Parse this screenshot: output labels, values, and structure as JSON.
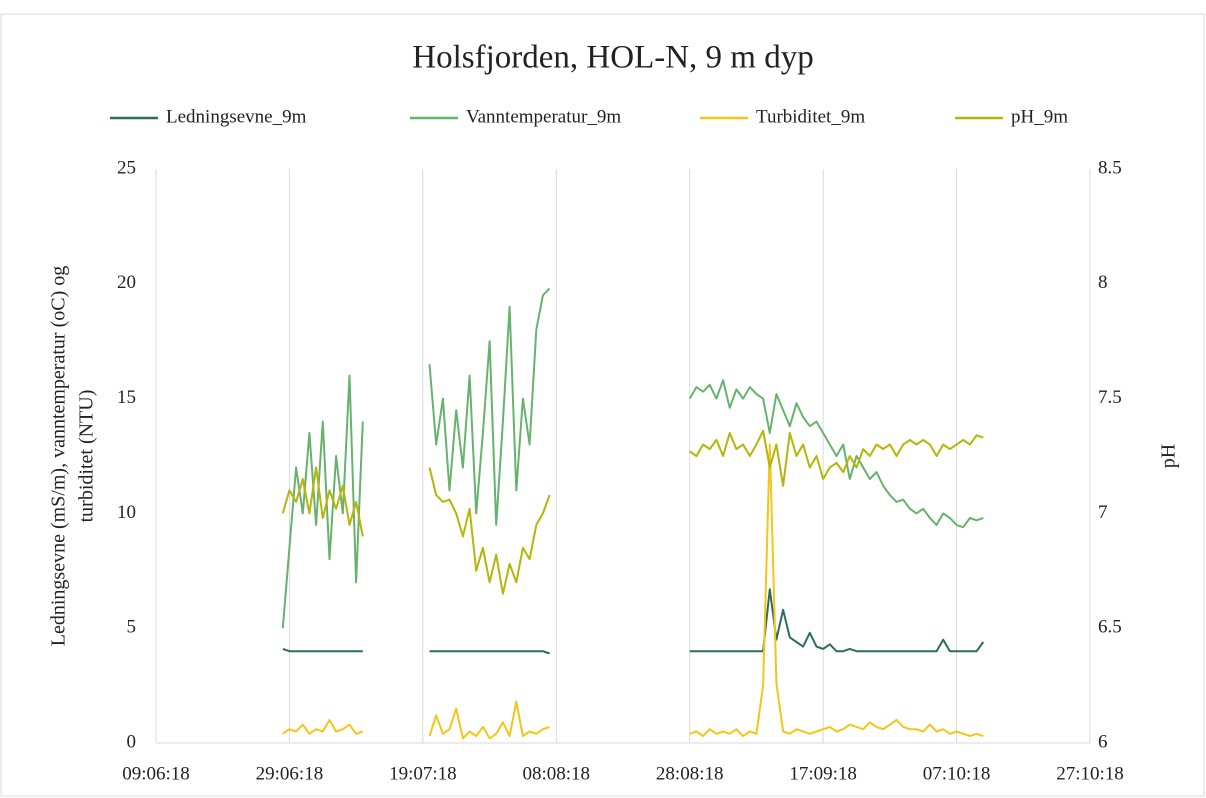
{
  "chart_data": {
    "type": "line",
    "title": "Holsfjorden, HOL-N, 9 m dyp",
    "ylabel": [
      "Ledningsevne (mS/m), vanntemperatur (oC) og",
      "turbiditet (NTU)"
    ],
    "y2label": "pH",
    "x": [
      "2018-06-28",
      "2018-06-29",
      "2018-06-30",
      "2018-07-01",
      "2018-07-02",
      "2018-07-03",
      "2018-07-04",
      "2018-07-05",
      "2018-07-06",
      "2018-07-07",
      "2018-07-08",
      "2018-07-09",
      "2018-07-10",
      "2018-07-15",
      "2018-07-20",
      "2018-07-21",
      "2018-07-22",
      "2018-07-23",
      "2018-07-24",
      "2018-07-25",
      "2018-07-26",
      "2018-07-27",
      "2018-07-28",
      "2018-07-29",
      "2018-07-30",
      "2018-07-31",
      "2018-08-01",
      "2018-08-02",
      "2018-08-03",
      "2018-08-04",
      "2018-08-05",
      "2018-08-06",
      "2018-08-07",
      "2018-08-17",
      "2018-08-28",
      "2018-08-29",
      "2018-08-30",
      "2018-08-31",
      "2018-09-01",
      "2018-09-02",
      "2018-09-03",
      "2018-09-04",
      "2018-09-05",
      "2018-09-06",
      "2018-09-07",
      "2018-09-08",
      "2018-09-09",
      "2018-09-10",
      "2018-09-11",
      "2018-09-12",
      "2018-09-13",
      "2018-09-14",
      "2018-09-15",
      "2018-09-16",
      "2018-09-17",
      "2018-09-18",
      "2018-09-19",
      "2018-09-20",
      "2018-09-21",
      "2018-09-22",
      "2018-09-23",
      "2018-09-24",
      "2018-09-25",
      "2018-09-26",
      "2018-09-27",
      "2018-09-28",
      "2018-09-29",
      "2018-09-30",
      "2018-10-01",
      "2018-10-02",
      "2018-10-03",
      "2018-10-04",
      "2018-10-05",
      "2018-10-06",
      "2018-10-07",
      "2018-10-08",
      "2018-10-09",
      "2018-10-10",
      "2018-10-11"
    ],
    "series": [
      {
        "name": "Ledningsevne_9m",
        "color": "#2e6b60",
        "values": [
          4.1,
          4.0,
          4.0,
          4.0,
          4.0,
          4.0,
          4.0,
          4.0,
          4.0,
          4.0,
          4.0,
          4.0,
          4.0,
          null,
          4.0,
          4.0,
          4.0,
          4.0,
          4.0,
          4.0,
          4.0,
          4.0,
          4.0,
          4.0,
          4.0,
          4.0,
          4.0,
          4.0,
          4.0,
          4.0,
          4.0,
          4.0,
          3.9,
          null,
          4.0,
          4.0,
          4.0,
          4.0,
          4.0,
          4.0,
          4.0,
          4.0,
          4.0,
          4.0,
          4.0,
          4.0,
          6.7,
          4.5,
          5.8,
          4.6,
          4.4,
          4.2,
          4.8,
          4.2,
          4.1,
          4.3,
          4.0,
          4.0,
          4.1,
          4.0,
          4.0,
          4.0,
          4.0,
          4.0,
          4.0,
          4.0,
          4.0,
          4.0,
          4.0,
          4.0,
          4.0,
          4.0,
          4.5,
          4.0,
          4.0,
          4.0,
          4.0,
          4.0,
          4.4
        ]
      },
      {
        "name": "Vanntemperatur_9m",
        "color": "#66b36e",
        "values": [
          5.0,
          8.5,
          12.0,
          10.0,
          13.5,
          9.5,
          14.0,
          8.0,
          12.5,
          10.0,
          16.0,
          7.0,
          14.0,
          null,
          16.5,
          13.0,
          15.0,
          11.0,
          14.5,
          12.0,
          16.0,
          10.0,
          13.5,
          17.5,
          9.5,
          14.0,
          19.0,
          11.0,
          15.0,
          13.0,
          18.0,
          19.5,
          19.8,
          null,
          15.0,
          15.5,
          15.3,
          15.6,
          15.0,
          15.8,
          14.6,
          15.4,
          15.0,
          15.5,
          15.2,
          15.0,
          13.5,
          15.2,
          14.5,
          13.8,
          14.8,
          14.2,
          13.8,
          14.0,
          13.5,
          13.0,
          12.5,
          13.0,
          11.5,
          12.5,
          12.0,
          11.5,
          11.8,
          11.2,
          10.8,
          10.5,
          10.6,
          10.2,
          10.0,
          10.2,
          9.8,
          9.5,
          10.0,
          9.8,
          9.5,
          9.4,
          9.8,
          9.7,
          9.8
        ]
      },
      {
        "name": "Turbiditet_9m",
        "color": "#f5c518",
        "values": [
          0.4,
          0.6,
          0.5,
          0.8,
          0.4,
          0.6,
          0.5,
          1.0,
          0.5,
          0.6,
          0.8,
          0.4,
          0.5,
          null,
          0.3,
          1.2,
          0.4,
          0.6,
          1.5,
          0.2,
          0.5,
          0.3,
          0.7,
          0.2,
          0.4,
          0.9,
          0.3,
          1.8,
          0.3,
          0.5,
          0.4,
          0.6,
          0.7,
          null,
          0.4,
          0.5,
          0.3,
          0.6,
          0.4,
          0.5,
          0.4,
          0.6,
          0.3,
          0.5,
          0.4,
          2.5,
          13.0,
          2.6,
          0.5,
          0.4,
          0.6,
          0.5,
          0.4,
          0.5,
          0.6,
          0.7,
          0.5,
          0.6,
          0.8,
          0.7,
          0.6,
          0.9,
          0.7,
          0.6,
          0.8,
          1.0,
          0.7,
          0.6,
          0.6,
          0.5,
          0.8,
          0.5,
          0.6,
          0.4,
          0.5,
          0.4,
          0.3,
          0.4,
          0.3
        ]
      },
      {
        "name": "pH_9m",
        "color": "#b5b50a",
        "axis": "y2",
        "values": [
          7.0,
          7.1,
          7.05,
          7.15,
          7.0,
          7.2,
          6.98,
          7.1,
          7.02,
          7.12,
          6.95,
          7.05,
          6.9,
          null,
          7.2,
          7.08,
          7.05,
          7.06,
          7.0,
          6.9,
          7.02,
          6.75,
          6.85,
          6.7,
          6.82,
          6.65,
          6.78,
          6.7,
          6.85,
          6.8,
          6.95,
          7.0,
          7.08,
          null,
          7.27,
          7.25,
          7.3,
          7.28,
          7.32,
          7.25,
          7.35,
          7.28,
          7.3,
          7.25,
          7.3,
          7.36,
          7.2,
          7.3,
          7.12,
          7.35,
          7.25,
          7.3,
          7.2,
          7.25,
          7.15,
          7.2,
          7.22,
          7.18,
          7.25,
          7.2,
          7.28,
          7.25,
          7.3,
          7.28,
          7.3,
          7.25,
          7.3,
          7.32,
          7.3,
          7.32,
          7.3,
          7.25,
          7.3,
          7.28,
          7.3,
          7.32,
          7.3,
          7.34,
          7.33
        ]
      }
    ],
    "xlim": [
      "2018-06-09",
      "2018-10-27"
    ],
    "xticks": [
      {
        "value": "2018-06-09",
        "label": "09:06:18"
      },
      {
        "value": "2018-06-29",
        "label": "29:06:18"
      },
      {
        "value": "2018-07-19",
        "label": "19:07:18"
      },
      {
        "value": "2018-08-08",
        "label": "08:08:18"
      },
      {
        "value": "2018-08-28",
        "label": "28:08:18"
      },
      {
        "value": "2018-09-17",
        "label": "17:09:18"
      },
      {
        "value": "2018-10-07",
        "label": "07:10:18"
      },
      {
        "value": "2018-10-27",
        "label": "27:10:18"
      }
    ],
    "ylim": [
      0,
      25
    ],
    "yticks": [
      0,
      5,
      10,
      15,
      20,
      25
    ],
    "y2lim": [
      6,
      8.5
    ],
    "y2ticks": [
      6,
      6.5,
      7,
      7.5,
      8,
      8.5
    ],
    "grid": "x",
    "legend": "top"
  }
}
